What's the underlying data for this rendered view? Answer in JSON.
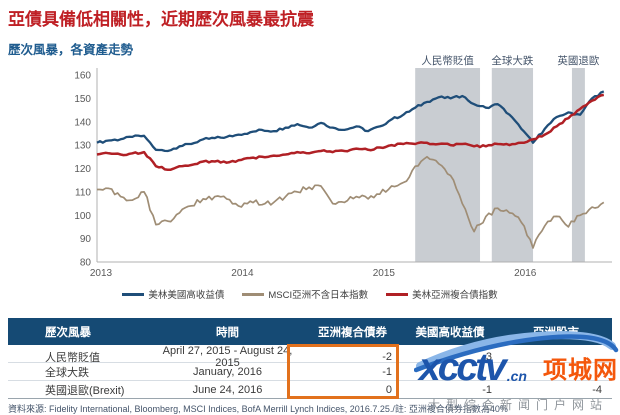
{
  "page": {
    "title": "亞債具備低相關性，近期歷次風暴最抗震",
    "subtitle": "歷次風暴，各資產走勢",
    "source_note": "資料來源: Fidelity International, Bloomberg, MSCI Indices, BofA Merrill Lynch Indices, 2016.7.25./註: 亞洲複合債券指數為40%"
  },
  "chart_data": {
    "type": "line",
    "title": "歷次風暴，各資產走勢",
    "x_unit": "month",
    "x_start": "2013-01",
    "x_end": "2016-08",
    "months_total": 43.7,
    "x_tick_labels": [
      "2013",
      "2014",
      "2015",
      "2016"
    ],
    "x_tick_months": [
      0,
      12,
      24,
      36
    ],
    "ylim": [
      80,
      160
    ],
    "y_ticks": [
      80,
      90,
      100,
      110,
      120,
      130,
      140,
      150,
      160
    ],
    "grid": false,
    "legend_position": "bottom-center",
    "band_color": "#c9cdd2",
    "bands": [
      {
        "label": "人民幣貶值",
        "start_month": 27.0,
        "end_month": 32.5
      },
      {
        "label": "全球大跌",
        "start_month": 33.5,
        "end_month": 37.0
      },
      {
        "label": "英國退歐",
        "start_month": 40.3,
        "end_month": 41.4
      }
    ],
    "series": [
      {
        "name": "美林美國高收益債",
        "color": "#1f4e79",
        "width": 2.3,
        "jitter": 0.5,
        "values": [
          131,
          132,
          132.5,
          133.5,
          134,
          128,
          127.5,
          129.5,
          130.5,
          132.5,
          133,
          133.5,
          134.5,
          135.5,
          136.5,
          136,
          137.5,
          139,
          137.5,
          139.5,
          137.5,
          136.5,
          138,
          136,
          138,
          141,
          143,
          146,
          148.5,
          150.5,
          150,
          151,
          147.5,
          146,
          147.5,
          143,
          137,
          131,
          137,
          142,
          144,
          143,
          150,
          153
        ]
      },
      {
        "name": "MSCI亞洲不含日本指數",
        "color": "#9f8d75",
        "width": 1.7,
        "jitter": 1.2,
        "values": [
          111,
          111.5,
          108,
          106.5,
          110,
          96,
          97.5,
          101,
          104,
          107,
          108,
          107,
          104,
          106,
          104.5,
          105.5,
          108,
          110,
          112,
          112.5,
          105,
          105.5,
          108,
          107,
          109,
          112.5,
          114,
          121,
          125,
          122,
          117,
          105,
          93,
          99.5,
          103,
          101,
          97,
          86,
          95.5,
          99.5,
          95,
          100,
          103.5,
          105.5
        ]
      },
      {
        "name": "美林亞洲複合債指數",
        "color": "#b02025",
        "width": 2.5,
        "jitter": 0.45,
        "values": [
          126,
          126.5,
          126,
          126.5,
          127,
          121,
          119.5,
          121,
          121.5,
          123,
          123,
          122.5,
          123.5,
          124.5,
          125,
          125.5,
          126,
          127,
          126.5,
          127.5,
          127,
          127.5,
          128.5,
          128,
          129,
          130,
          130.5,
          130.5,
          131,
          130.5,
          130,
          130.5,
          129.5,
          129.5,
          130.5,
          130,
          131,
          132.5,
          134.5,
          138,
          141.5,
          145.5,
          149,
          151.5
        ]
      }
    ]
  },
  "table": {
    "columns": [
      "歷次風暴",
      "時間",
      "亞洲複合債券",
      "美國高收益債",
      "亞洲股市"
    ],
    "highlight_color": "#e2711d",
    "rows": [
      {
        "event": "人民幣貶值",
        "period": "April 27, 2015 - August 24, 2015",
        "asian_bond": "-2",
        "us_hy": "-3",
        "asian_eq": ""
      },
      {
        "event": "全球大跌",
        "period": "January, 2016",
        "asian_bond": "-1",
        "us_hy": "",
        "asian_eq": ""
      },
      {
        "event": "英國退歐(Brexit)",
        "period": "June 24, 2016",
        "asian_bond": "0",
        "us_hy": "-1",
        "asian_eq": "-4"
      }
    ]
  },
  "watermark": {
    "logo_text": "xcctv",
    "domain": ".cn",
    "site_name": "项城网",
    "tagline": "大型综合新闻门户网站",
    "color_blue": "#1d55ab",
    "color_orange": "#f4570b"
  }
}
